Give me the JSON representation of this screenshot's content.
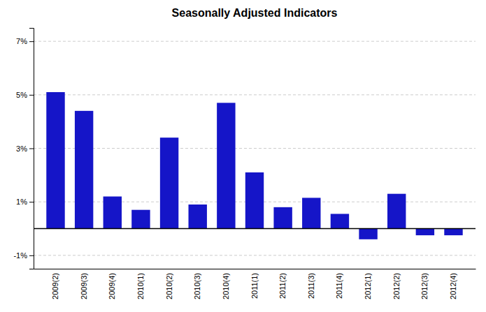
{
  "chart_data": {
    "type": "bar",
    "title": "Seasonally Adjusted Indicators",
    "categories": [
      "2009(2)",
      "2009(3)",
      "2009(4)",
      "2010(1)",
      "2010(2)",
      "2010(3)",
      "2010(4)",
      "2011(1)",
      "2011(2)",
      "2011(3)",
      "2011(4)",
      "2012(1)",
      "2012(2)",
      "2012(3)",
      "2012(4)"
    ],
    "values": [
      5.1,
      4.4,
      1.2,
      0.7,
      3.4,
      0.9,
      4.7,
      2.1,
      0.8,
      1.15,
      0.55,
      -0.4,
      1.3,
      -0.25,
      -0.25
    ],
    "color": "#1515c8",
    "ylim": [
      -1.5,
      7.5
    ],
    "yticks": [
      {
        "value": -1,
        "label": "-1%"
      },
      {
        "value": 1,
        "label": "1%"
      },
      {
        "value": 3,
        "label": "3%"
      },
      {
        "value": 5,
        "label": "5%"
      },
      {
        "value": 7,
        "label": "7%"
      }
    ],
    "grid": true
  }
}
